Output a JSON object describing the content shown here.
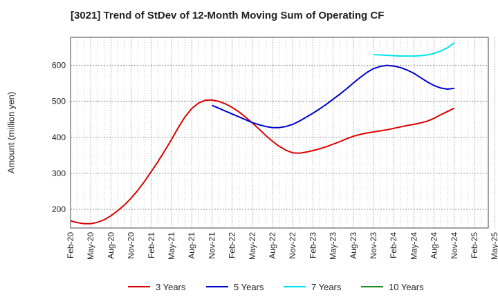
{
  "title": "[3021]  Trend of StDev of 12-Month Moving Sum of Operating CF",
  "chart_data": {
    "type": "line",
    "title": "[3021]  Trend of StDev of 12-Month Moving Sum of Operating CF",
    "xlabel": "",
    "ylabel": "Amount (million yen)",
    "x_ticks": [
      "Feb-20",
      "May-20",
      "Aug-20",
      "Nov-20",
      "Feb-21",
      "May-21",
      "Aug-21",
      "Nov-21",
      "Feb-22",
      "May-22",
      "Aug-22",
      "Nov-22",
      "Feb-23",
      "May-23",
      "Aug-23",
      "Nov-23",
      "Feb-24",
      "May-24",
      "Aug-24",
      "Nov-24",
      "Feb-25",
      "May-25"
    ],
    "y_ticks": [
      200,
      300,
      400,
      500,
      600
    ],
    "ylim": [
      148,
      678
    ],
    "grid": true,
    "legend_position": "bottom",
    "series": [
      {
        "name": "3 Years",
        "color": "#dd0000",
        "x": [
          "Feb-20",
          "Mar-20",
          "Apr-20",
          "May-20",
          "Jun-20",
          "Jul-20",
          "Aug-20",
          "Sep-20",
          "Oct-20",
          "Nov-20",
          "Dec-20",
          "Jan-21",
          "Feb-21",
          "Mar-21",
          "Apr-21",
          "May-21",
          "Jun-21",
          "Jul-21",
          "Aug-21",
          "Sep-21",
          "Oct-21",
          "Nov-21",
          "Dec-21",
          "Jan-22",
          "Feb-22",
          "Mar-22",
          "Apr-22",
          "May-22",
          "Jun-22",
          "Jul-22",
          "Aug-22",
          "Sep-22",
          "Oct-22",
          "Nov-22",
          "Dec-22",
          "Jan-23",
          "Feb-23",
          "Mar-23",
          "Apr-23",
          "May-23",
          "Jun-23",
          "Jul-23",
          "Aug-23",
          "Sep-23",
          "Oct-23",
          "Nov-23",
          "Dec-23",
          "Jan-24",
          "Feb-24",
          "Mar-24",
          "Apr-24",
          "May-24",
          "Jun-24",
          "Jul-24",
          "Aug-24",
          "Sep-24",
          "Oct-24",
          "Nov-24"
        ],
        "values": [
          168,
          163,
          160,
          160,
          164,
          171,
          182,
          196,
          212,
          231,
          253,
          278,
          305,
          333,
          363,
          394,
          427,
          457,
          480,
          495,
          503,
          504,
          500,
          493,
          483,
          471,
          456,
          440,
          423,
          405,
          389,
          375,
          364,
          357,
          356,
          359,
          363,
          368,
          374,
          381,
          388,
          396,
          403,
          408,
          412,
          415,
          418,
          421,
          425,
          429,
          433,
          436,
          440,
          445,
          453,
          463,
          472,
          481
        ]
      },
      {
        "name": "5 Years",
        "color": "#0000cc",
        "x": [
          "Nov-21",
          "Dec-21",
          "Jan-22",
          "Feb-22",
          "Mar-22",
          "Apr-22",
          "May-22",
          "Jun-22",
          "Jul-22",
          "Aug-22",
          "Sep-22",
          "Oct-22",
          "Nov-22",
          "Dec-22",
          "Jan-23",
          "Feb-23",
          "Mar-23",
          "Apr-23",
          "May-23",
          "Jun-23",
          "Jul-23",
          "Aug-23",
          "Sep-23",
          "Oct-23",
          "Nov-23",
          "Dec-23",
          "Jan-24",
          "Feb-24",
          "Mar-24",
          "Apr-24",
          "May-24",
          "Jun-24",
          "Jul-24",
          "Aug-24",
          "Sep-24",
          "Oct-24",
          "Nov-24"
        ],
        "values": [
          489,
          481,
          473,
          465,
          457,
          449,
          441,
          435,
          430,
          427,
          427,
          430,
          436,
          445,
          456,
          467,
          479,
          492,
          506,
          520,
          535,
          551,
          566,
          580,
          591,
          597,
          600,
          598,
          594,
          587,
          578,
          566,
          554,
          544,
          537,
          534,
          536
        ]
      },
      {
        "name": "7 Years",
        "color": "#00e5ee",
        "x": [
          "Nov-23",
          "Dec-23",
          "Jan-24",
          "Feb-24",
          "Mar-24",
          "Apr-24",
          "May-24",
          "Jun-24",
          "Jul-24",
          "Aug-24",
          "Sep-24",
          "Oct-24",
          "Nov-24"
        ],
        "values": [
          630,
          629,
          628,
          627,
          626,
          626,
          626,
          627,
          629,
          633,
          640,
          649,
          663
        ]
      },
      {
        "name": "10 Years",
        "color": "#228b22",
        "x": [],
        "values": []
      }
    ]
  }
}
